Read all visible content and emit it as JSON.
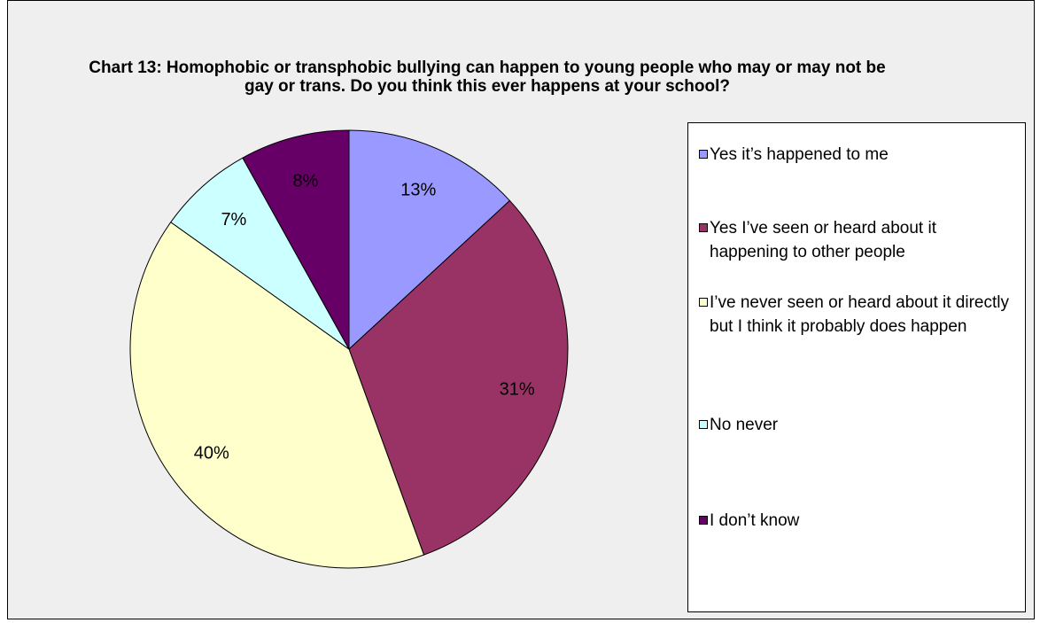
{
  "chart_data": {
    "type": "pie",
    "title": "Chart 13: Homophobic or transphobic bullying can happen to young people who may or may not be gay or trans. Do you think this ever happens at your school?",
    "categories": [
      "Yes it’s happened to me",
      "Yes I’ve seen or heard about it happening to other people",
      "I’ve never seen or heard about it directly but I think it probably does happen",
      "No never",
      "I don’t know"
    ],
    "values": [
      13,
      31,
      40,
      7,
      8
    ],
    "value_labels": [
      "13%",
      "31%",
      "40%",
      "7%",
      "8%"
    ],
    "colors": [
      "#9999ff",
      "#993366",
      "#ffffcc",
      "#ccffff",
      "#660066"
    ],
    "legend": "right"
  }
}
